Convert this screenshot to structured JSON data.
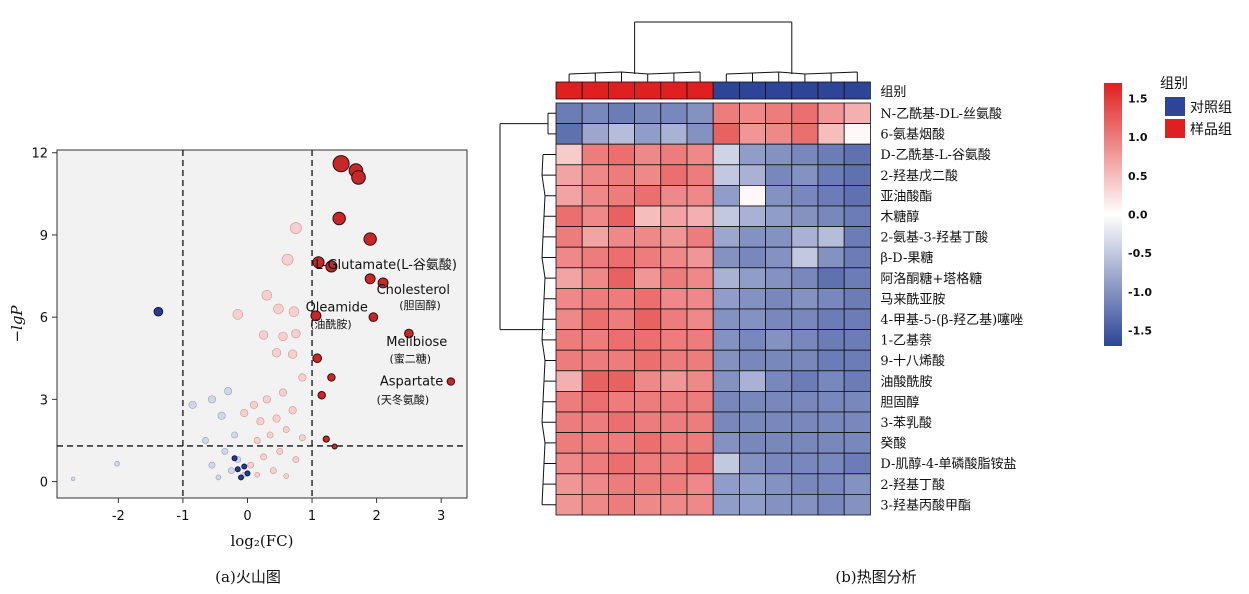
{
  "panels": {
    "a_caption": "(a)火山图",
    "b_caption": "(b)热图分析"
  },
  "chart_data": [
    {
      "type": "scatter",
      "xlabel": "log₂(FC)",
      "ylabel": "−lgP",
      "xlim": [
        -2.95,
        3.4
      ],
      "ylim": [
        -0.6,
        12.1
      ],
      "xticks": [
        -2,
        -1,
        0,
        1,
        2,
        3
      ],
      "yticks": [
        0,
        3,
        6,
        9,
        12
      ],
      "thresholds": {
        "x": [
          -1,
          1
        ],
        "y": 1.3
      },
      "colors": {
        "up": "#c62828",
        "down": "#2b3a8f",
        "up_light": "#f2b7b5",
        "down_light": "#b9bfd9"
      },
      "points": [
        {
          "x": 1.45,
          "y": 11.6,
          "r": 13,
          "g": "up"
        },
        {
          "x": 1.68,
          "y": 11.35,
          "r": 11,
          "g": "up"
        },
        {
          "x": 1.72,
          "y": 11.1,
          "r": 11,
          "g": "up"
        },
        {
          "x": 1.42,
          "y": 9.6,
          "r": 10,
          "g": "up"
        },
        {
          "x": 1.9,
          "y": 8.85,
          "r": 10,
          "g": "up"
        },
        {
          "x": 1.1,
          "y": 8.0,
          "r": 9,
          "g": "up"
        },
        {
          "x": 1.3,
          "y": 7.85,
          "r": 9,
          "g": "up"
        },
        {
          "x": 1.9,
          "y": 7.4,
          "r": 8,
          "g": "up"
        },
        {
          "x": 2.1,
          "y": 7.25,
          "r": 8,
          "g": "up"
        },
        {
          "x": 1.06,
          "y": 6.05,
          "r": 8,
          "g": "up"
        },
        {
          "x": 1.95,
          "y": 6.0,
          "r": 7,
          "g": "up"
        },
        {
          "x": 2.5,
          "y": 5.4,
          "r": 7,
          "g": "up"
        },
        {
          "x": 1.08,
          "y": 4.5,
          "r": 7,
          "g": "up"
        },
        {
          "x": 1.3,
          "y": 3.8,
          "r": 6,
          "g": "up"
        },
        {
          "x": 1.15,
          "y": 3.15,
          "r": 6,
          "g": "up"
        },
        {
          "x": 3.15,
          "y": 3.65,
          "r": 6,
          "g": "up"
        },
        {
          "x": 1.22,
          "y": 1.55,
          "r": 5,
          "g": "up"
        },
        {
          "x": 1.35,
          "y": 1.28,
          "r": 4,
          "g": "up"
        },
        {
          "x": -1.38,
          "y": 6.2,
          "r": 7,
          "g": "down"
        },
        {
          "x": 0.75,
          "y": 9.25,
          "r": 9,
          "g": "up_light"
        },
        {
          "x": 0.62,
          "y": 8.1,
          "r": 9,
          "g": "up_light"
        },
        {
          "x": 0.3,
          "y": 6.8,
          "r": 8,
          "g": "up_light"
        },
        {
          "x": 0.48,
          "y": 6.3,
          "r": 8,
          "g": "up_light"
        },
        {
          "x": -0.15,
          "y": 6.1,
          "r": 8,
          "g": "up_light"
        },
        {
          "x": 0.72,
          "y": 6.2,
          "r": 8,
          "g": "up_light"
        },
        {
          "x": 0.25,
          "y": 5.35,
          "r": 7,
          "g": "up_light"
        },
        {
          "x": 0.55,
          "y": 5.3,
          "r": 7,
          "g": "up_light"
        },
        {
          "x": 0.75,
          "y": 5.4,
          "r": 7,
          "g": "up_light"
        },
        {
          "x": 0.45,
          "y": 4.7,
          "r": 7,
          "g": "up_light"
        },
        {
          "x": 0.7,
          "y": 4.65,
          "r": 7,
          "g": "up_light"
        },
        {
          "x": 0.85,
          "y": 3.8,
          "r": 6,
          "g": "up_light"
        },
        {
          "x": 0.55,
          "y": 3.25,
          "r": 6,
          "g": "up_light"
        },
        {
          "x": 0.3,
          "y": 3.0,
          "r": 6,
          "g": "up_light"
        },
        {
          "x": 0.1,
          "y": 2.8,
          "r": 6,
          "g": "up_light"
        },
        {
          "x": 0.7,
          "y": 2.6,
          "r": 6,
          "g": "up_light"
        },
        {
          "x": 0.45,
          "y": 2.3,
          "r": 6,
          "g": "up_light"
        },
        {
          "x": 0.2,
          "y": 2.2,
          "r": 6,
          "g": "up_light"
        },
        {
          "x": -0.05,
          "y": 2.5,
          "r": 6,
          "g": "up_light"
        },
        {
          "x": 0.6,
          "y": 1.9,
          "r": 5,
          "g": "up_light"
        },
        {
          "x": 0.35,
          "y": 1.7,
          "r": 5,
          "g": "up_light"
        },
        {
          "x": 0.85,
          "y": 1.6,
          "r": 5,
          "g": "up_light"
        },
        {
          "x": 0.15,
          "y": 1.5,
          "r": 5,
          "g": "up_light"
        },
        {
          "x": 0.5,
          "y": 1.1,
          "r": 5,
          "g": "up_light"
        },
        {
          "x": 0.25,
          "y": 0.9,
          "r": 5,
          "g": "up_light"
        },
        {
          "x": 0.75,
          "y": 0.8,
          "r": 5,
          "g": "up_light"
        },
        {
          "x": 0.05,
          "y": 0.6,
          "r": 5,
          "g": "up_light"
        },
        {
          "x": 0.4,
          "y": 0.4,
          "r": 5,
          "g": "up_light"
        },
        {
          "x": 0.15,
          "y": 0.25,
          "r": 4,
          "g": "up_light"
        },
        {
          "x": 0.6,
          "y": 0.2,
          "r": 4,
          "g": "up_light"
        },
        {
          "x": -0.3,
          "y": 3.3,
          "r": 6,
          "g": "down_light"
        },
        {
          "x": -0.55,
          "y": 3.0,
          "r": 6,
          "g": "down_light"
        },
        {
          "x": -0.85,
          "y": 2.8,
          "r": 6,
          "g": "down_light"
        },
        {
          "x": -0.4,
          "y": 2.4,
          "r": 6,
          "g": "down_light"
        },
        {
          "x": -0.2,
          "y": 1.7,
          "r": 5,
          "g": "down_light"
        },
        {
          "x": -0.65,
          "y": 1.5,
          "r": 5,
          "g": "down_light"
        },
        {
          "x": -0.35,
          "y": 1.1,
          "r": 5,
          "g": "down_light"
        },
        {
          "x": -0.15,
          "y": 0.8,
          "r": 5,
          "g": "down_light"
        },
        {
          "x": -0.55,
          "y": 0.6,
          "r": 5,
          "g": "down_light"
        },
        {
          "x": -0.25,
          "y": 0.4,
          "r": 5,
          "g": "down_light"
        },
        {
          "x": -0.05,
          "y": 0.25,
          "r": 4,
          "g": "down_light"
        },
        {
          "x": -0.45,
          "y": 0.15,
          "r": 4,
          "g": "down_light"
        },
        {
          "x": -2.02,
          "y": 0.65,
          "r": 4,
          "g": "down_light"
        },
        {
          "x": -2.7,
          "y": 0.1,
          "r": 3,
          "g": "down_light"
        },
        {
          "x": -0.2,
          "y": 0.85,
          "r": 4,
          "g": "down"
        },
        {
          "x": -0.05,
          "y": 0.55,
          "r": 4,
          "g": "down"
        },
        {
          "x": -0.15,
          "y": 0.45,
          "r": 4,
          "g": "down"
        },
        {
          "x": 0.0,
          "y": 0.3,
          "r": 4,
          "g": "down"
        },
        {
          "x": -0.1,
          "y": 0.15,
          "r": 4,
          "g": "down"
        }
      ],
      "annotations": [
        {
          "x": 1.05,
          "y": 7.75,
          "text": "L-Glutamate(L-谷氨酸)"
        },
        {
          "x": 2.0,
          "y": 6.85,
          "text": "Cholesterol"
        },
        {
          "x": 2.35,
          "y": 6.3,
          "text": "(胆固醇)"
        },
        {
          "x": 0.9,
          "y": 6.2,
          "text": "Oleamide"
        },
        {
          "x": 0.97,
          "y": 5.6,
          "text": "(油酰胺)"
        },
        {
          "x": 2.15,
          "y": 4.95,
          "text": "Melibiose"
        },
        {
          "x": 2.2,
          "y": 4.35,
          "text": "(蜜二糖)"
        },
        {
          "x": 2.05,
          "y": 3.5,
          "text": "Aspartate"
        },
        {
          "x": 2.0,
          "y": 2.85,
          "text": "(天冬氨酸)"
        }
      ]
    },
    {
      "type": "heatmap",
      "group_row_label": "组别",
      "legend": {
        "title": "组别",
        "items": [
          {
            "label": "对照组",
            "color": "#2e4597"
          },
          {
            "label": "样品组",
            "color": "#e02020"
          }
        ]
      },
      "colorbar": {
        "ticks": [
          1.5,
          1.0,
          0.5,
          0.0,
          -0.5,
          -1.0,
          -1.5
        ],
        "tick_labels": [
          "1.5",
          "1.0",
          "0.5",
          "0.0",
          "-0.5",
          "-1.0",
          "-1.5"
        ],
        "vmin": -1.7,
        "vmax": 1.7,
        "low": "#2e4597",
        "mid": "#ffffff",
        "high": "#e02020"
      },
      "column_groups": [
        "样品组",
        "样品组",
        "样品组",
        "样品组",
        "样品组",
        "样品组",
        "对照组",
        "对照组",
        "对照组",
        "对照组",
        "对照组",
        "对照组"
      ],
      "rows": [
        {
          "label": "N-乙酰基-DL-丝氨酸",
          "values": [
            -1.2,
            -1.1,
            -1.2,
            -1.1,
            -1.1,
            -1.0,
            1.0,
            0.9,
            1.0,
            1.1,
            0.8,
            0.6
          ]
        },
        {
          "label": "6-氨基烟酸",
          "values": [
            -1.3,
            -0.8,
            -0.6,
            -0.9,
            -0.7,
            -1.0,
            1.2,
            0.8,
            0.9,
            1.1,
            0.5,
            0.05
          ]
        },
        {
          "label": "D-乙酰基-L-谷氨酸",
          "values": [
            0.4,
            1.0,
            1.1,
            0.9,
            1.0,
            0.9,
            -0.4,
            -0.9,
            -1.0,
            -1.1,
            -1.2,
            -1.3
          ]
        },
        {
          "label": "2-羟基戊二酸",
          "values": [
            0.7,
            0.9,
            1.0,
            0.9,
            1.1,
            1.0,
            -0.5,
            -0.7,
            -1.1,
            -1.0,
            -1.2,
            -1.3
          ]
        },
        {
          "label": "亚油酸酯",
          "values": [
            0.7,
            0.9,
            1.0,
            1.1,
            0.9,
            0.9,
            -0.9,
            0.05,
            -1.0,
            -1.1,
            -1.2,
            -1.3
          ]
        },
        {
          "label": "木糖醇",
          "values": [
            1.1,
            0.9,
            1.2,
            0.5,
            0.7,
            0.6,
            -0.5,
            -0.7,
            -0.9,
            -1.0,
            -1.1,
            -1.2
          ]
        },
        {
          "label": "2-氨基-3-羟基丁酸",
          "values": [
            1.0,
            0.7,
            0.9,
            0.9,
            0.8,
            1.0,
            -0.8,
            -1.0,
            -1.0,
            -0.7,
            -0.6,
            -1.2
          ]
        },
        {
          "label": "β-D-果糖",
          "values": [
            0.9,
            1.0,
            1.1,
            1.0,
            0.9,
            0.8,
            -1.0,
            -1.1,
            -1.0,
            -0.5,
            -1.0,
            -1.2
          ]
        },
        {
          "label": "阿洛酮糖+塔格糖",
          "values": [
            0.7,
            0.9,
            1.2,
            0.8,
            1.0,
            0.9,
            -0.7,
            -0.9,
            -1.0,
            -1.1,
            -1.3,
            -1.2
          ]
        },
        {
          "label": "马来酰亚胺",
          "values": [
            0.9,
            1.0,
            1.0,
            1.1,
            0.9,
            0.9,
            -0.9,
            -1.0,
            -1.1,
            -1.0,
            -1.1,
            -1.2
          ]
        },
        {
          "label": "4-甲基-5-(β-羟乙基)噻唑",
          "values": [
            0.9,
            1.1,
            1.0,
            1.2,
            1.0,
            0.9,
            -1.0,
            -1.0,
            -1.1,
            -1.1,
            -1.2,
            -1.2
          ]
        },
        {
          "label": "1-乙基萘",
          "values": [
            1.0,
            1.0,
            1.1,
            1.1,
            1.0,
            1.0,
            -1.0,
            -1.1,
            -1.0,
            -1.1,
            -1.2,
            -1.2
          ]
        },
        {
          "label": "9-十八烯酸",
          "values": [
            1.0,
            1.0,
            1.0,
            1.1,
            1.0,
            1.0,
            -1.0,
            -1.1,
            -1.1,
            -1.1,
            -1.2,
            -1.2
          ]
        },
        {
          "label": "油酸酰胺",
          "values": [
            0.6,
            1.2,
            1.2,
            0.9,
            0.8,
            0.9,
            -1.0,
            -0.7,
            -1.1,
            -1.2,
            -1.1,
            -1.2
          ]
        },
        {
          "label": "胆固醇",
          "values": [
            1.0,
            1.1,
            1.0,
            1.0,
            1.0,
            1.0,
            -1.1,
            -1.1,
            -1.1,
            -1.1,
            -1.1,
            -1.1
          ]
        },
        {
          "label": "3-苯乳酸",
          "values": [
            1.0,
            1.0,
            1.1,
            1.0,
            1.0,
            1.0,
            -1.1,
            -1.1,
            -1.1,
            -1.1,
            -1.1,
            -1.1
          ]
        },
        {
          "label": "癸酸",
          "values": [
            1.0,
            1.0,
            1.0,
            1.1,
            1.0,
            1.0,
            -1.0,
            -1.1,
            -1.1,
            -1.1,
            -1.1,
            -1.1
          ]
        },
        {
          "label": "D-肌醇-4-单磷酸脂铵盐",
          "values": [
            0.9,
            1.0,
            1.1,
            1.0,
            1.0,
            1.1,
            -0.5,
            -1.0,
            -1.1,
            -1.1,
            -1.1,
            -1.2
          ]
        },
        {
          "label": "2-羟基丁酸",
          "values": [
            0.8,
            0.9,
            1.0,
            1.0,
            1.0,
            0.9,
            -0.9,
            -0.9,
            -1.0,
            -1.1,
            -1.1,
            -1.0
          ]
        },
        {
          "label": "3-羟基丙酸甲酯",
          "values": [
            0.8,
            0.9,
            1.0,
            0.9,
            0.9,
            0.9,
            -0.9,
            -0.9,
            -1.0,
            -1.0,
            -1.1,
            -1.0
          ]
        }
      ]
    }
  ]
}
